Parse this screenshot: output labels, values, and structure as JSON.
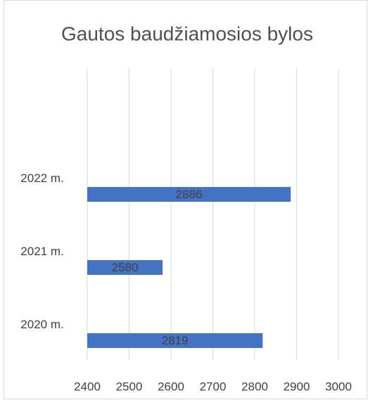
{
  "chart_data": {
    "type": "bar",
    "orientation": "horizontal",
    "title": "Gautos baudžiamosios bylos",
    "categories": [
      "2020 m.",
      "2021 m.",
      "2022 m."
    ],
    "values": [
      2819,
      2580,
      2886
    ],
    "color": "#4472c4",
    "xlim": [
      2400,
      3000
    ],
    "xticks": [
      2400,
      2500,
      2600,
      2700,
      2800,
      2900,
      3000
    ],
    "grid": true
  }
}
